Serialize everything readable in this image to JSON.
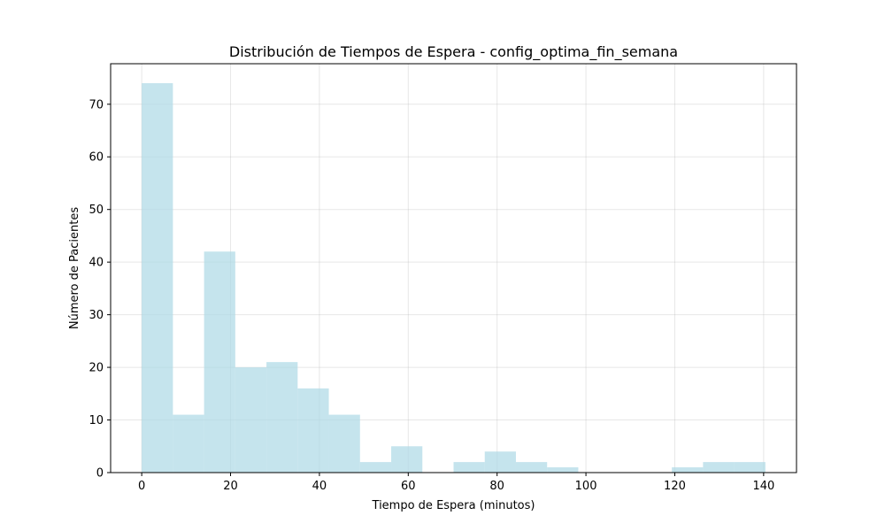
{
  "chart_data": {
    "type": "bar",
    "title": "Distribución de Tiempos de Espera - config_optima_fin_semana",
    "xlabel": "Tiempo de Espera (minutos)",
    "ylabel": "Número de Pacientes",
    "bin_edges": [
      0,
      7.02,
      14.04,
      21.06,
      28.08,
      35.1,
      42.12,
      49.14,
      56.16,
      63.18,
      70.2,
      77.22,
      84.24,
      91.26,
      98.28,
      105.3,
      112.32,
      119.34,
      126.36,
      133.38,
      140.4
    ],
    "values": [
      74,
      11,
      42,
      20,
      21,
      16,
      11,
      2,
      5,
      0,
      2,
      4,
      2,
      1,
      0,
      0,
      0,
      1,
      2,
      2
    ],
    "xlim": [
      -7,
      147.4
    ],
    "ylim": [
      0,
      77.7
    ],
    "xticks": [
      0,
      20,
      40,
      60,
      80,
      100,
      120,
      140
    ],
    "yticks": [
      0,
      10,
      20,
      30,
      40,
      50,
      60,
      70
    ],
    "grid": true,
    "bar_color": "#add8e6",
    "bar_opacity": 0.7
  }
}
